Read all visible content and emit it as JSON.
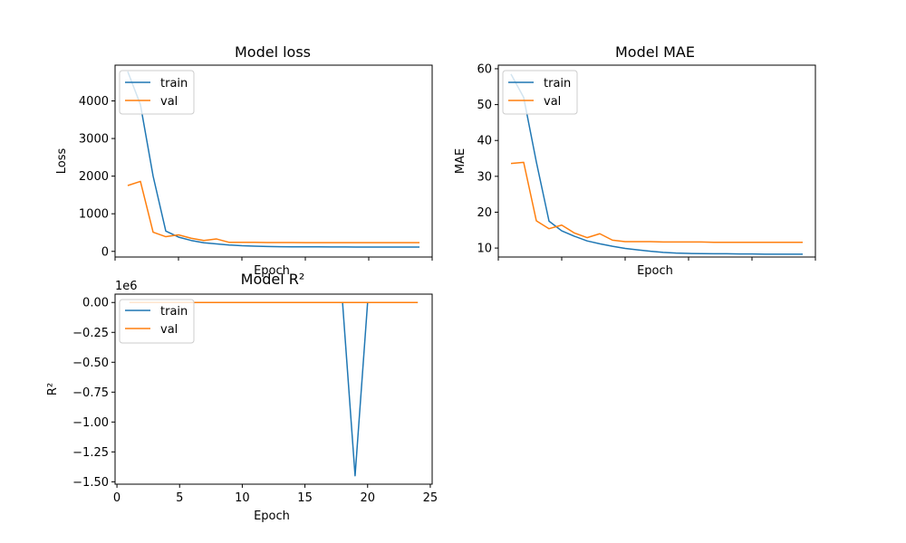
{
  "chart_data": [
    {
      "type": "line",
      "title": "Model loss",
      "xlabel": "Epoch",
      "ylabel": "Loss",
      "xlim": [
        0,
        25
      ],
      "ylim": [
        -150,
        4950
      ],
      "yticks": [
        0,
        1000,
        2000,
        3000,
        4000
      ],
      "ytick_labels": [
        "0",
        "1000",
        "2000",
        "3000",
        "4000"
      ],
      "grid": false,
      "legend": "upper-left",
      "x": [
        1,
        2,
        3,
        4,
        5,
        6,
        7,
        8,
        9,
        10,
        11,
        12,
        13,
        14,
        15,
        16,
        17,
        18,
        19,
        20,
        21,
        22,
        23,
        24
      ],
      "series": [
        {
          "name": "train",
          "color": "#1f77b4",
          "values": [
            4780,
            3900,
            2000,
            540,
            380,
            290,
            230,
            200,
            170,
            150,
            140,
            130,
            125,
            122,
            120,
            120,
            118,
            117,
            116,
            116,
            115,
            115,
            115,
            114
          ]
        },
        {
          "name": "val",
          "color": "#ff7f0e",
          "values": [
            1750,
            1860,
            510,
            390,
            440,
            350,
            290,
            330,
            240,
            240,
            240,
            235,
            235,
            235,
            232,
            232,
            232,
            232,
            232,
            232,
            232,
            232,
            232,
            232
          ]
        }
      ]
    },
    {
      "type": "line",
      "title": "Model MAE",
      "xlabel": "Epoch",
      "ylabel": "MAE",
      "xlim": [
        0,
        25
      ],
      "ylim": [
        7.5,
        61
      ],
      "yticks": [
        10,
        20,
        30,
        40,
        50,
        60
      ],
      "ytick_labels": [
        "10",
        "20",
        "30",
        "40",
        "50",
        "60"
      ],
      "grid": false,
      "legend": "upper-left",
      "x": [
        1,
        2,
        3,
        4,
        5,
        6,
        7,
        8,
        9,
        10,
        11,
        12,
        13,
        14,
        15,
        16,
        17,
        18,
        19,
        20,
        21,
        22,
        23,
        24
      ],
      "series": [
        {
          "name": "train",
          "color": "#1f77b4",
          "values": [
            58.5,
            52,
            34,
            17.5,
            14.8,
            13.3,
            12,
            11.2,
            10.5,
            9.9,
            9.5,
            9.1,
            8.8,
            8.6,
            8.5,
            8.45,
            8.4,
            8.4,
            8.35,
            8.35,
            8.3,
            8.3,
            8.3,
            8.3
          ]
        },
        {
          "name": "val",
          "color": "#ff7f0e",
          "values": [
            33.6,
            33.9,
            17.6,
            15.4,
            16.4,
            14.2,
            12.9,
            14.0,
            12.2,
            11.8,
            11.8,
            11.8,
            11.7,
            11.7,
            11.7,
            11.7,
            11.6,
            11.6,
            11.6,
            11.6,
            11.6,
            11.6,
            11.6,
            11.6
          ]
        }
      ]
    },
    {
      "type": "line",
      "title": "Model R²",
      "xlabel": "Epoch",
      "ylabel": "R²",
      "offset_label": "1e6",
      "xlim": [
        -0.15,
        25.15
      ],
      "ylim": [
        -1.52,
        0.07
      ],
      "xticks": [
        0,
        5,
        10,
        15,
        20,
        25
      ],
      "xtick_labels": [
        "0",
        "5",
        "10",
        "15",
        "20",
        "25"
      ],
      "yticks": [
        0,
        -0.25,
        -0.5,
        -0.75,
        -1.0,
        -1.25,
        -1.5
      ],
      "ytick_labels": [
        "0.00",
        "−0.25",
        "−0.50",
        "−0.75",
        "−1.00",
        "−1.25",
        "−1.50"
      ],
      "grid": false,
      "legend": "upper-left",
      "x": [
        1,
        2,
        3,
        4,
        5,
        6,
        7,
        8,
        9,
        10,
        11,
        12,
        13,
        14,
        15,
        16,
        17,
        18,
        19,
        20,
        21,
        22,
        23,
        24
      ],
      "series": [
        {
          "name": "train",
          "color": "#1f77b4",
          "values": [
            0,
            0,
            0,
            0,
            0,
            0,
            0,
            0,
            0,
            0,
            0,
            0,
            0,
            0,
            0,
            0,
            0,
            0,
            -1.45,
            0,
            0,
            0,
            0,
            0
          ]
        },
        {
          "name": "val",
          "color": "#ff7f0e",
          "values": [
            0,
            0,
            0,
            0,
            0,
            0,
            0,
            0,
            0,
            0,
            0,
            0,
            0,
            0,
            0,
            0,
            0,
            0,
            0,
            0,
            0,
            0,
            0,
            0
          ]
        }
      ]
    }
  ]
}
